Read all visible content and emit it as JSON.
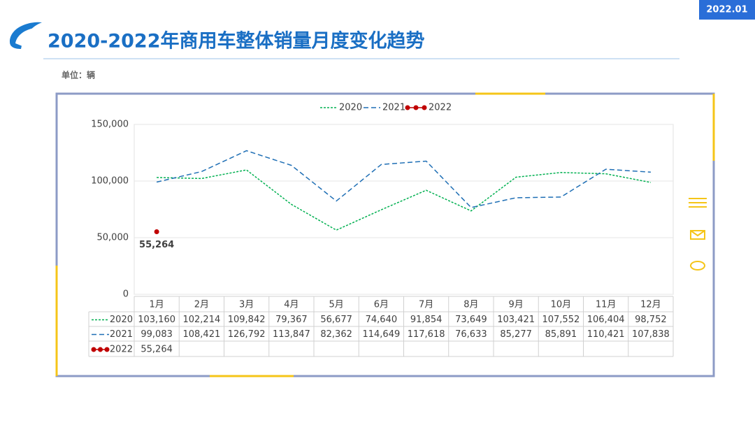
{
  "header": {
    "title": "2020-2022年商用车整体销量月度变化趋势",
    "unit": "单位：辆",
    "date": "2022.01"
  },
  "chart_data": {
    "type": "line",
    "categories": [
      "1月",
      "2月",
      "3月",
      "4月",
      "5月",
      "6月",
      "7月",
      "8月",
      "9月",
      "10月",
      "11月",
      "12月"
    ],
    "series": [
      {
        "name": "2020",
        "color": "#00b050",
        "dash": "3,2",
        "values": [
          103160,
          102214,
          109842,
          79367,
          56677,
          74640,
          91854,
          73649,
          103421,
          107552,
          106404,
          98752
        ],
        "value_labels": [
          "103,160",
          "102,214",
          "109,842",
          "79,367",
          "56,677",
          "74,640",
          "91,854",
          "73,649",
          "103,421",
          "107,552",
          "106,404",
          "98,752"
        ]
      },
      {
        "name": "2021",
        "color": "#1f6fb5",
        "dash": "7,4",
        "values": [
          99083,
          108421,
          126792,
          113847,
          82362,
          114649,
          117618,
          76633,
          85277,
          85891,
          110421,
          107838
        ],
        "value_labels": [
          "99,083",
          "108,421",
          "126,792",
          "113,847",
          "82,362",
          "114,649",
          "117,618",
          "76,633",
          "85,277",
          "85,891",
          "110,421",
          "107,838"
        ]
      },
      {
        "name": "2022",
        "color": "#c00000",
        "dash": null,
        "values": [
          55264,
          null,
          null,
          null,
          null,
          null,
          null,
          null,
          null,
          null,
          null,
          null
        ],
        "value_labels": [
          "55,264",
          null,
          null,
          null,
          null,
          null,
          null,
          null,
          null,
          null,
          null,
          null
        ]
      }
    ],
    "ylim": [
      0,
      150000
    ],
    "yticks": [
      0,
      {
        "value": 50000,
        "label": "50,000"
      },
      {
        "value": 100000,
        "label": "100,000"
      },
      {
        "value": 150000,
        "label": "150,000"
      }
    ],
    "grid": true,
    "legend": "top"
  }
}
